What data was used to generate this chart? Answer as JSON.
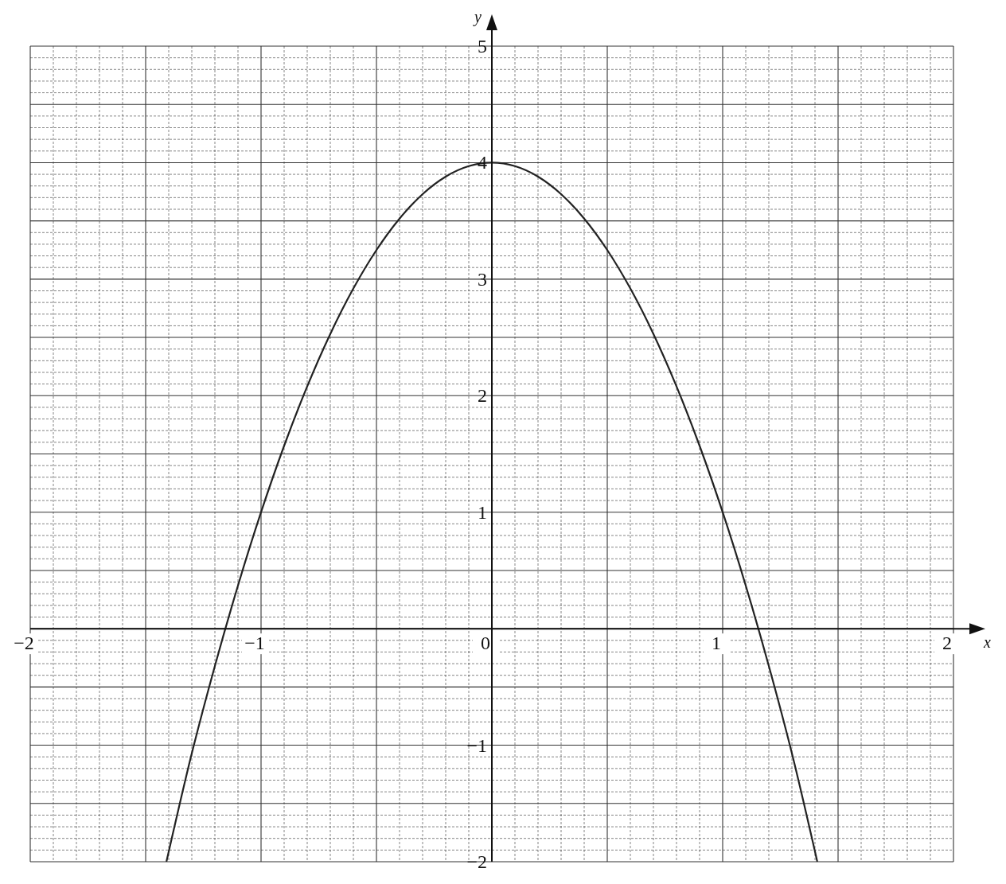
{
  "chart_data": {
    "type": "line",
    "xlabel": "x",
    "ylabel": "y",
    "xlim": [
      -2,
      2
    ],
    "ylim": [
      -2,
      5
    ],
    "xticks": [
      -2,
      -1,
      0,
      1,
      2
    ],
    "yticks": [
      -2,
      -1,
      1,
      2,
      3,
      4,
      5
    ],
    "grid": true,
    "marker": "none",
    "line_style": "solid",
    "x": [
      -1.41,
      -1.3,
      -1.2,
      -1.1,
      -1.0,
      -0.9,
      -0.8,
      -0.7,
      -0.6,
      -0.5,
      -0.4,
      -0.3,
      -0.2,
      -0.1,
      0,
      0.1,
      0.2,
      0.3,
      0.4,
      0.5,
      0.6,
      0.7,
      0.8,
      0.9,
      1.0,
      1.1,
      1.2,
      1.3,
      1.41
    ],
    "series": [
      {
        "color": "#222222",
        "values": [
          -2,
          -1.07,
          -0.32,
          0.37,
          1.0,
          1.57,
          2.08,
          2.53,
          2.92,
          3.25,
          3.52,
          3.73,
          3.88,
          3.97,
          4,
          3.97,
          3.88,
          3.73,
          3.52,
          3.25,
          2.92,
          2.53,
          2.08,
          1.57,
          1.0,
          0.37,
          -0.32,
          -1.07,
          -2
        ]
      }
    ]
  }
}
